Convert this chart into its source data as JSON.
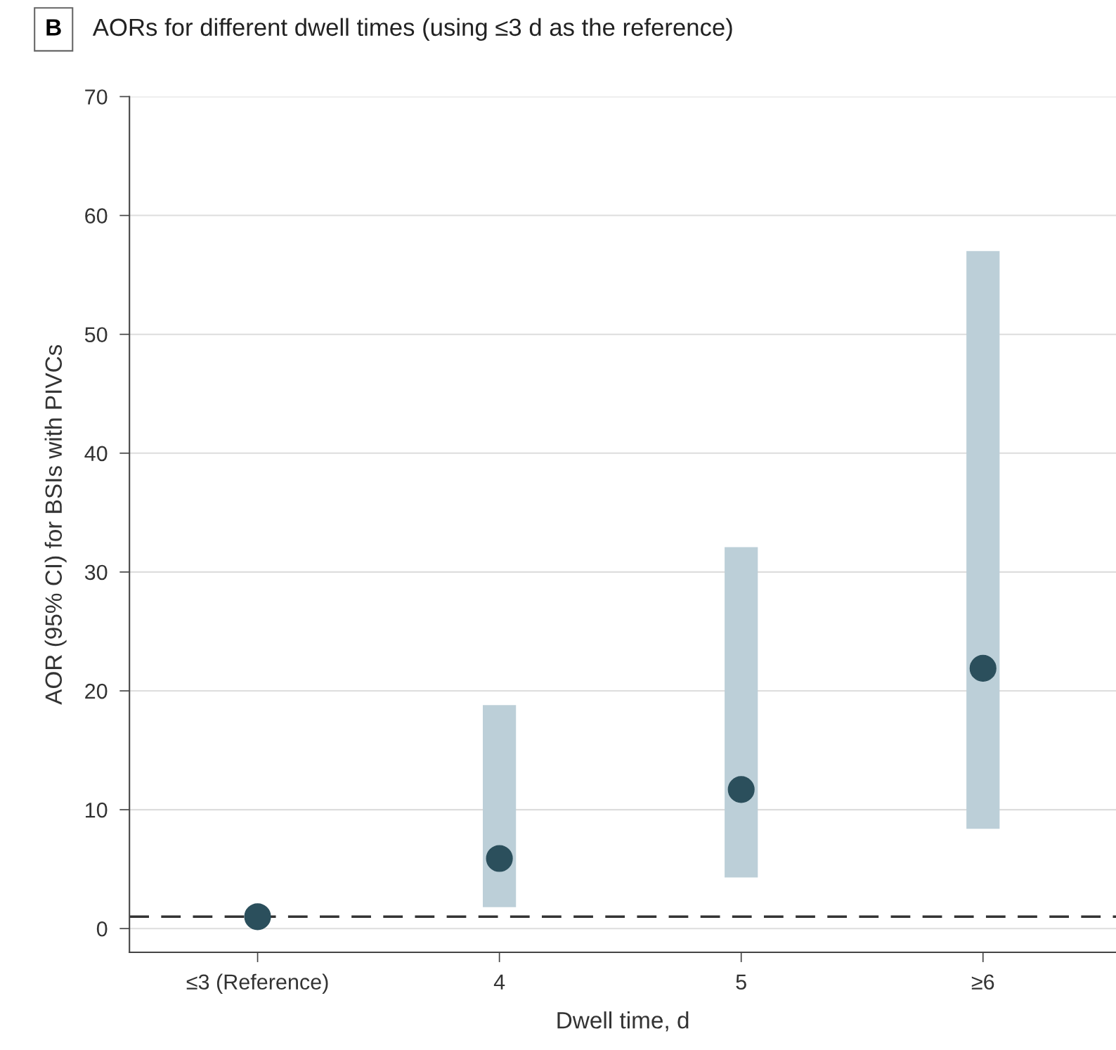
{
  "chart_data": {
    "type": "scatter",
    "title": "AORs for different dwell times (using ≤3 d as the reference)",
    "annotations": [
      "B"
    ],
    "xlabel": "Dwell time, d",
    "ylabel": "AOR (95% CI) for BSIs with PIVCs",
    "categories": [
      "≤3 (Reference)",
      "4",
      "5",
      "≥6"
    ],
    "series": [
      {
        "color": "#2b4f5c",
        "values": [
          1,
          5.9,
          11.7,
          21.9
        ],
        "errors": [
          null,
          [
            1.8,
            18.8
          ],
          [
            4.3,
            32.1
          ],
          [
            8.4,
            57.0
          ]
        ]
      }
    ],
    "ylim": [
      -2,
      70
    ],
    "yticks": [
      0,
      10,
      20,
      30,
      40,
      50,
      60,
      70
    ],
    "grid": "y",
    "marker": "circle",
    "ref_lines": [
      {
        "axis": "y",
        "value": 1,
        "color": "#333333",
        "line_style": "dashed"
      }
    ]
  }
}
